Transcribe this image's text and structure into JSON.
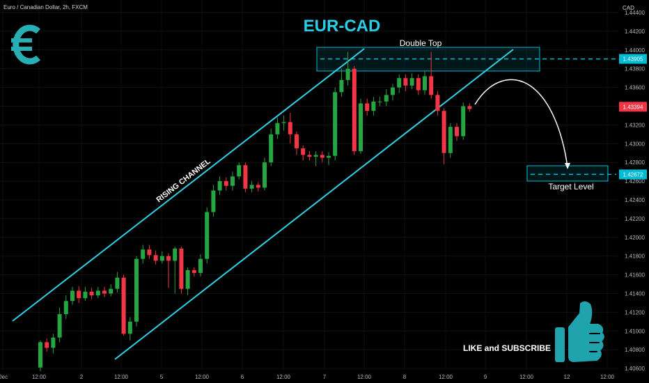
{
  "header": {
    "symbol_info": "Euro / Canadian Dollar, 2h, FXCM"
  },
  "chart_data": {
    "type": "candlestick",
    "title": "EUR-CAD",
    "currency_label": "CAD",
    "y_range": [
      1.405,
      1.445
    ],
    "y_ticks": [
      "1.44400",
      "1.44200",
      "1.44000",
      "1.43800",
      "1.43600",
      "1.43400",
      "1.43200",
      "1.43000",
      "1.42800",
      "1.42600",
      "1.42400",
      "1.42200",
      "1.42000",
      "1.41800",
      "1.41600",
      "1.41400",
      "1.41200",
      "1.41000",
      "1.40800",
      "1.40600"
    ],
    "x_tick_labels": [
      "Dec",
      "12:00",
      "2",
      "12:00",
      "5",
      "12:00",
      "6",
      "12:00",
      "7",
      "12:00",
      "8",
      "12:00",
      "9",
      "12:00",
      "12",
      "12:00"
    ],
    "price_badges": [
      {
        "text": "1.43905",
        "value": 1.43905,
        "color": "#00bcd4"
      },
      {
        "text": "1.43394",
        "value": 1.43394,
        "color": "#f23645"
      },
      {
        "text": "1.42672",
        "value": 1.42672,
        "color": "#00bcd4"
      }
    ],
    "levels": {
      "double_top": 1.43905,
      "target": 1.42672
    },
    "annotations": {
      "double_top": "Double Top",
      "target": "Target Level",
      "channel": "RISING CHANNEL",
      "cta": "LIKE and SUBSCRIBE"
    },
    "candles": [
      [
        1.4061,
        1.4088,
        1.4057,
        1.409
      ],
      [
        1.4088,
        1.4082,
        1.4078,
        1.4092
      ],
      [
        1.4082,
        1.4093,
        1.4076,
        1.4097
      ],
      [
        1.4093,
        1.4118,
        1.4088,
        1.4125
      ],
      [
        1.4118,
        1.4132,
        1.4113,
        1.4138
      ],
      [
        1.4132,
        1.4143,
        1.4128,
        1.4147
      ],
      [
        1.4143,
        1.4135,
        1.413,
        1.4148
      ],
      [
        1.4135,
        1.4142,
        1.4132,
        1.4147
      ],
      [
        1.4142,
        1.4138,
        1.4134,
        1.4146
      ],
      [
        1.4138,
        1.4143,
        1.4135,
        1.4147
      ],
      [
        1.4143,
        1.414,
        1.4136,
        1.4147
      ],
      [
        1.414,
        1.4145,
        1.4137,
        1.415
      ],
      [
        1.4145,
        1.4157,
        1.4141,
        1.4163
      ],
      [
        1.4157,
        1.4097,
        1.4095,
        1.416
      ],
      [
        1.4097,
        1.411,
        1.409,
        1.4115
      ],
      [
        1.411,
        1.4177,
        1.4105,
        1.418
      ],
      [
        1.4177,
        1.4187,
        1.4172,
        1.4192
      ],
      [
        1.4187,
        1.4181,
        1.4177,
        1.4192
      ],
      [
        1.4181,
        1.4175,
        1.4171,
        1.4186
      ],
      [
        1.4175,
        1.418,
        1.4172,
        1.4185
      ],
      [
        1.418,
        1.4175,
        1.4146,
        1.4183
      ],
      [
        1.4175,
        1.4188,
        1.414,
        1.419
      ],
      [
        1.4188,
        1.4145,
        1.414,
        1.419
      ],
      [
        1.4145,
        1.4165,
        1.4138,
        1.4168
      ],
      [
        1.4165,
        1.4162,
        1.4158,
        1.4168
      ],
      [
        1.4162,
        1.4177,
        1.4158,
        1.4182
      ],
      [
        1.4177,
        1.4227,
        1.4172,
        1.4232
      ],
      [
        1.4227,
        1.425,
        1.4222,
        1.4256
      ],
      [
        1.425,
        1.426,
        1.4245,
        1.4265
      ],
      [
        1.426,
        1.4255,
        1.425,
        1.4264
      ],
      [
        1.4255,
        1.4265,
        1.425,
        1.427
      ],
      [
        1.4265,
        1.4277,
        1.4262,
        1.428
      ],
      [
        1.4277,
        1.4252,
        1.4248,
        1.428
      ],
      [
        1.4252,
        1.4256,
        1.4248,
        1.426
      ],
      [
        1.4256,
        1.4253,
        1.4249,
        1.4259
      ],
      [
        1.4253,
        1.428,
        1.425,
        1.4285
      ],
      [
        1.428,
        1.431,
        1.4276,
        1.4316
      ],
      [
        1.431,
        1.4322,
        1.4305,
        1.4328
      ],
      [
        1.4322,
        1.4323,
        1.4314,
        1.433
      ],
      [
        1.4323,
        1.431,
        1.43,
        1.4333
      ],
      [
        1.431,
        1.4295,
        1.4288,
        1.4313
      ],
      [
        1.4295,
        1.4288,
        1.4282,
        1.4298
      ],
      [
        1.4288,
        1.4286,
        1.4282,
        1.4292
      ],
      [
        1.4286,
        1.4288,
        1.4276,
        1.4292
      ],
      [
        1.4288,
        1.4285,
        1.428,
        1.4292
      ],
      [
        1.4285,
        1.4287,
        1.4277,
        1.4291
      ],
      [
        1.4287,
        1.4355,
        1.4282,
        1.436
      ],
      [
        1.4355,
        1.4368,
        1.435,
        1.438
      ],
      [
        1.4368,
        1.438,
        1.4362,
        1.4398
      ],
      [
        1.438,
        1.4292,
        1.4288,
        1.4383
      ],
      [
        1.4292,
        1.4343,
        1.4289,
        1.4348
      ],
      [
        1.4343,
        1.4335,
        1.433,
        1.4348
      ],
      [
        1.4335,
        1.4345,
        1.433,
        1.435
      ],
      [
        1.4345,
        1.4345,
        1.434,
        1.435
      ],
      [
        1.4345,
        1.4352,
        1.434,
        1.4358
      ],
      [
        1.4352,
        1.436,
        1.4346,
        1.4364
      ],
      [
        1.436,
        1.437,
        1.4354,
        1.4374
      ],
      [
        1.437,
        1.4362,
        1.4356,
        1.4374
      ],
      [
        1.4362,
        1.437,
        1.4358,
        1.4375
      ],
      [
        1.437,
        1.4357,
        1.4352,
        1.4374
      ],
      [
        1.4357,
        1.4372,
        1.4352,
        1.4378
      ],
      [
        1.4372,
        1.4352,
        1.4348,
        1.4398
      ],
      [
        1.4352,
        1.4335,
        1.433,
        1.4356
      ],
      [
        1.4335,
        1.429,
        1.4278,
        1.4338
      ],
      [
        1.429,
        1.4318,
        1.4285,
        1.4322
      ],
      [
        1.4318,
        1.4308,
        1.4303,
        1.4322
      ],
      [
        1.4308,
        1.434,
        1.4304,
        1.4344
      ],
      [
        1.434,
        1.4337,
        1.4334,
        1.4343
      ]
    ]
  }
}
